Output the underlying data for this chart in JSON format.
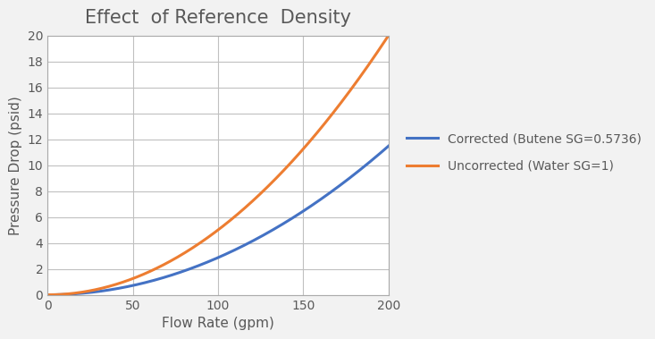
{
  "title": "Effect  of Reference  Density",
  "xlabel": "Flow Rate (gpm)",
  "ylabel": "Pressure Drop (psid)",
  "xlim": [
    0,
    200
  ],
  "ylim": [
    0,
    20
  ],
  "xticks": [
    0,
    50,
    100,
    150,
    200
  ],
  "yticks": [
    0,
    2,
    4,
    6,
    8,
    10,
    12,
    14,
    16,
    18,
    20
  ],
  "sg_corrected": 0.5736,
  "sg_uncorrected": 1.0,
  "k": 0.0005,
  "q_max": 200,
  "color_corrected": "#4472C4",
  "color_uncorrected": "#ED7D31",
  "legend_corrected": "Corrected (Butene SG=0.5736)",
  "legend_uncorrected": "Uncorrected (Water SG=1)",
  "linewidth": 2.2,
  "title_fontsize": 15,
  "label_fontsize": 11,
  "tick_fontsize": 10,
  "legend_fontsize": 10,
  "figure_bg": "#F2F2F2",
  "plot_bg": "#FFFFFF",
  "grid_color": "#C0C0C0",
  "text_color": "#595959",
  "spine_color": "#AAAAAA"
}
